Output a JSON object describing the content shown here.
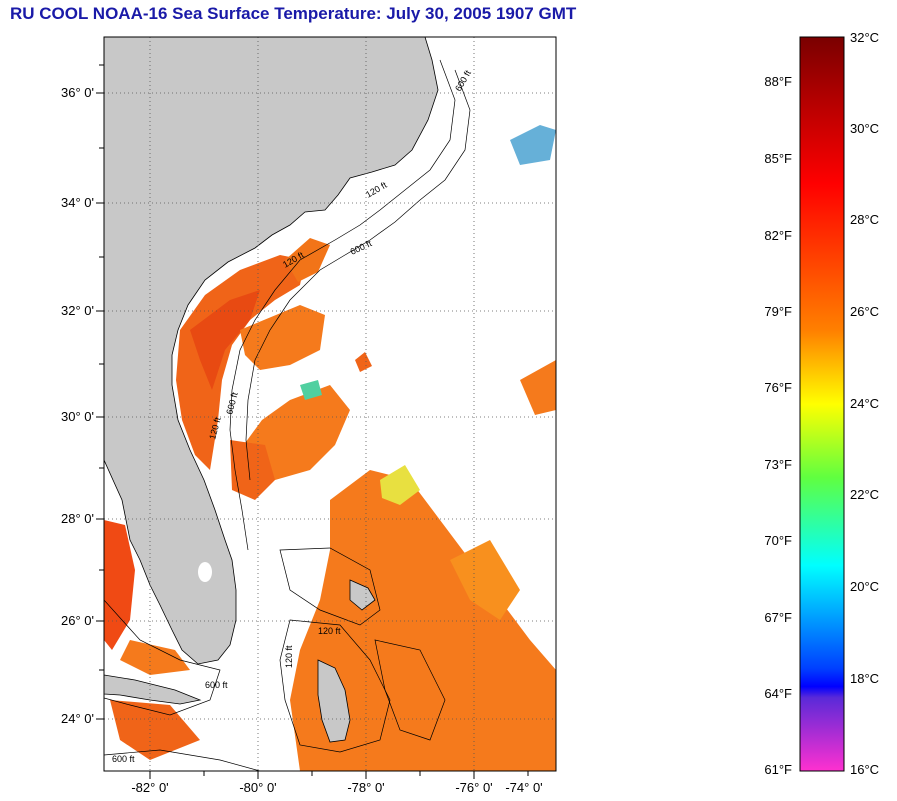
{
  "title": "RU COOL  NOAA-16  Sea Surface Temperature:  July 30, 2005 1907 GMT",
  "map": {
    "lat_labels": [
      "36° 0'",
      "34° 0'",
      "32° 0'",
      "30° 0'",
      "28° 0'",
      "26° 0'",
      "24° 0'"
    ],
    "lon_labels": [
      "-82° 0'",
      "-80° 0'",
      "-78° 0'",
      "-76° 0'",
      "-74° 0'"
    ],
    "land_color": "#c8c8c8",
    "contour_labels": [
      "120 ft",
      "600 ft",
      "120 ft",
      "600 ft",
      "120 ft",
      "600 ft",
      "120 ft",
      "600 ft",
      "120 ft",
      "600 ft"
    ]
  },
  "colorbar": {
    "fahrenheit_labels": [
      "88°F",
      "85°F",
      "82°F",
      "79°F",
      "76°F",
      "73°F",
      "70°F",
      "67°F",
      "64°F",
      "61°F"
    ],
    "celsius_labels": [
      "32°C",
      "30°C",
      "28°C",
      "26°C",
      "24°C",
      "22°C",
      "20°C",
      "18°C",
      "16°C"
    ]
  }
}
